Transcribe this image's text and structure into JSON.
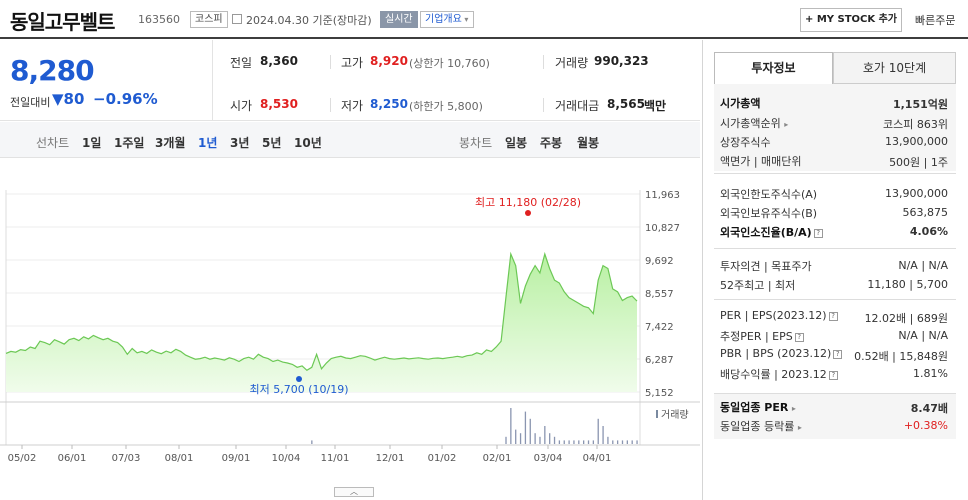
{
  "header": {
    "name": "동일고무벨트",
    "code": "163560",
    "market_tag": "코스피",
    "date_text": "2024.04.30  기준(장마감)",
    "realtime_tag": "실시간",
    "company_tag": "기업개요",
    "mystock_label": "+ MY STOCK 추가",
    "quick_order_label": "빠른주문"
  },
  "price": {
    "current": "8,280",
    "change_label": "전일대비",
    "change_value": "▼80",
    "change_pct": "−0.96%"
  },
  "quote": {
    "prev_label": "전일",
    "prev_value": "8,360",
    "high_label": "고가",
    "high_value": "8,920",
    "upper_limit": "(상한가 10,760)",
    "volume_label": "거래량",
    "volume_value": "990,323",
    "open_label": "시가",
    "open_value": "8,530",
    "low_label": "저가",
    "low_value": "8,250",
    "lower_limit": "(하한가 5,800)",
    "amount_label": "거래대금",
    "amount_value": "8,565",
    "amount_unit": "백만"
  },
  "tabs": {
    "line_label": "선차트",
    "periods": [
      "1일",
      "1주일",
      "3개월",
      "1년",
      "3년",
      "5년",
      "10년"
    ],
    "active_period": "1년",
    "candle_label": "봉차트",
    "candles": [
      "일봉",
      "주봉",
      "월봉"
    ]
  },
  "chart_data": {
    "type": "area",
    "y_ticks": [
      "11,963",
      "10,827",
      "9,692",
      "8,557",
      "7,422",
      "6,287",
      "5,152"
    ],
    "ylim": [
      5152,
      11963
    ],
    "x_ticks": [
      "05/02",
      "06/01",
      "07/03",
      "08/01",
      "09/01",
      "10/04",
      "11/01",
      "12/01",
      "01/02",
      "02/01",
      "03/04",
      "04/01"
    ],
    "high_annotation": "최고 11,180 (02/28)",
    "low_annotation": "최저 5,700 (10/19)",
    "volume_label": "거래량",
    "price_series": [
      6480,
      6550,
      6520,
      6610,
      6580,
      6700,
      6650,
      6900,
      6850,
      6780,
      6950,
      6880,
      6800,
      6950,
      7000,
      6920,
      7050,
      6980,
      7100,
      7020,
      6950,
      7000,
      6900,
      6850,
      6700,
      6450,
      6650,
      6500,
      6550,
      6480,
      6600,
      6520,
      6470,
      6560,
      6500,
      6620,
      6550,
      6420,
      6350,
      6280,
      6300,
      6350,
      6280,
      6320,
      6290,
      6250,
      6330,
      6280,
      6200,
      6300,
      6350,
      6280,
      6450,
      6350,
      6300,
      6200,
      6250,
      6180,
      6150,
      6100,
      6000,
      6050,
      5900,
      6000,
      6450,
      5950,
      6150,
      6300,
      6350,
      6380,
      6320,
      6300,
      6350,
      6400,
      6380,
      6320,
      6250,
      6300,
      6350,
      6300,
      6280,
      6300,
      6320,
      6290,
      6310,
      6330,
      6300,
      6280,
      6310,
      6320,
      6300,
      6330,
      6350,
      6380,
      6350,
      6400,
      6420,
      6500,
      6450,
      6600,
      6550,
      6700,
      6900,
      8400,
      9900,
      9500,
      8200,
      8800,
      9200,
      9500,
      9250,
      9900,
      9400,
      9000,
      8900,
      8600,
      8400,
      8300,
      8200,
      8100,
      8050,
      7850,
      9000,
      9500,
      9400,
      8700,
      8600,
      8300,
      8400,
      8450,
      8280
    ],
    "volume_series": [
      0,
      0,
      0,
      0,
      0,
      0,
      0,
      0,
      0,
      0,
      0,
      0,
      0,
      0,
      0,
      0,
      0,
      0,
      0,
      0,
      0,
      0,
      0,
      0,
      0,
      0,
      0,
      0,
      0,
      0,
      0,
      0,
      0,
      0,
      0,
      0,
      0,
      0,
      0,
      0,
      0,
      0,
      0,
      0,
      0,
      0,
      0,
      0,
      0,
      0,
      0,
      0,
      0,
      0,
      0,
      0,
      0,
      0,
      0,
      0,
      0,
      0,
      0,
      1,
      0,
      0,
      0,
      0,
      0,
      0,
      0,
      0,
      0,
      0,
      0,
      0,
      0,
      0,
      0,
      0,
      0,
      0,
      0,
      0,
      0,
      0,
      0,
      0,
      0,
      0,
      0,
      0,
      0,
      0,
      0,
      0,
      0,
      0,
      0,
      0,
      0,
      0,
      0,
      2,
      10,
      4,
      3,
      9,
      7,
      3,
      2,
      5,
      3,
      2,
      1,
      1,
      1,
      1,
      1,
      1,
      1,
      1,
      7,
      5,
      2,
      1,
      1,
      1,
      1,
      1,
      1
    ]
  },
  "info": {
    "tab_active": "투자정보",
    "tab_other": "호가 10단계",
    "market_cap_label": "시가총액",
    "market_cap_value": "1,151억원",
    "market_rank_label": "시가총액순위",
    "market_rank_value": "코스피 863위",
    "shares_label": "상장주식수",
    "shares_value": "13,900,000",
    "par_label": "액면가 | 매매단위",
    "par_value": "500원 | 1주",
    "foreign_limit_label": "외국인한도주식수(A)",
    "foreign_limit_value": "13,900,000",
    "foreign_hold_label": "외국인보유주식수(B)",
    "foreign_hold_value": "563,875",
    "foreign_ratio_label": "외국인소진율(B/A)",
    "foreign_ratio_value": "4.06%",
    "opinion_label": "투자의견 | 목표주가",
    "opinion_value": "N/A | N/A",
    "week52_label": "52주최고 | 최저",
    "week52_value": "11,180 | 5,700",
    "per_label": "PER | EPS(2023.12)",
    "per_value": "12.02배 | 689원",
    "est_per_label": "추정PER | EPS",
    "est_per_value": "N/A | N/A",
    "pbr_label": "PBR | BPS (2023.12)",
    "pbr_value": "0.52배 | 15,848원",
    "div_label": "배당수익률 | 2023.12",
    "div_value": "1.81%",
    "sector_per_label": "동일업종 PER",
    "sector_per_value": "8.47배",
    "sector_rate_label": "동일업종 등락률",
    "sector_rate_value": "+0.38%"
  }
}
